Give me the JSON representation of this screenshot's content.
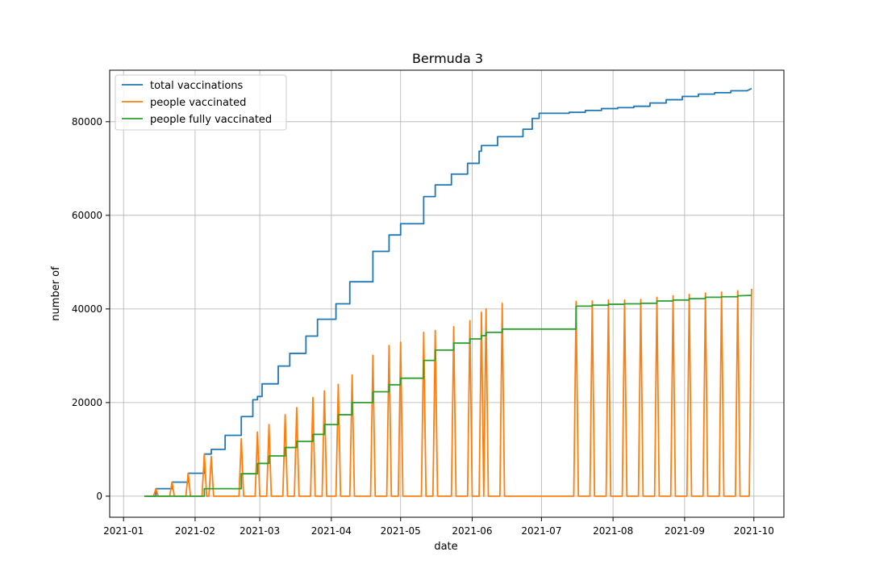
{
  "chart_data": {
    "type": "line",
    "title": "Bermuda 3",
    "xlabel": "date",
    "ylabel": "number of",
    "xlim": [
      "2020-12-26",
      "2021-10-14"
    ],
    "ylim": [
      -4500,
      91000
    ],
    "x_ticks": [
      "2021-01",
      "2021-02",
      "2021-03",
      "2021-04",
      "2021-05",
      "2021-06",
      "2021-07",
      "2021-08",
      "2021-09",
      "2021-10"
    ],
    "y_ticks": [
      0,
      20000,
      40000,
      60000,
      80000
    ],
    "y_tick_labels": [
      "0",
      "20000",
      "40000",
      "60000",
      "80000"
    ],
    "grid": true,
    "legend_position": "top-left",
    "series": [
      {
        "name": "total vaccinations",
        "color": "#1f77b4",
        "points": [
          [
            "2021-01-10",
            0
          ],
          [
            "2021-01-15",
            0
          ],
          [
            "2021-01-15",
            1600
          ],
          [
            "2021-01-22",
            1600
          ],
          [
            "2021-01-22",
            3000
          ],
          [
            "2021-01-29",
            3000
          ],
          [
            "2021-01-29",
            4900
          ],
          [
            "2021-02-05",
            4900
          ],
          [
            "2021-02-05",
            9000
          ],
          [
            "2021-02-08",
            9000
          ],
          [
            "2021-02-08",
            10000
          ],
          [
            "2021-02-14",
            10000
          ],
          [
            "2021-02-14",
            13000
          ],
          [
            "2021-02-21",
            13000
          ],
          [
            "2021-02-21",
            17000
          ],
          [
            "2021-02-26",
            17000
          ],
          [
            "2021-02-26",
            20600
          ],
          [
            "2021-02-28",
            20600
          ],
          [
            "2021-02-28",
            21300
          ],
          [
            "2021-03-02",
            21300
          ],
          [
            "2021-03-02",
            24000
          ],
          [
            "2021-03-09",
            24000
          ],
          [
            "2021-03-09",
            27800
          ],
          [
            "2021-03-14",
            27800
          ],
          [
            "2021-03-14",
            30500
          ],
          [
            "2021-03-21",
            30500
          ],
          [
            "2021-03-21",
            34200
          ],
          [
            "2021-03-26",
            34200
          ],
          [
            "2021-03-26",
            37800
          ],
          [
            "2021-04-03",
            37800
          ],
          [
            "2021-04-03",
            41100
          ],
          [
            "2021-04-09",
            41100
          ],
          [
            "2021-04-09",
            45800
          ],
          [
            "2021-04-19",
            45800
          ],
          [
            "2021-04-19",
            52300
          ],
          [
            "2021-04-26",
            52300
          ],
          [
            "2021-04-26",
            55800
          ],
          [
            "2021-05-01",
            55800
          ],
          [
            "2021-05-01",
            58200
          ],
          [
            "2021-05-11",
            58200
          ],
          [
            "2021-05-11",
            64000
          ],
          [
            "2021-05-16",
            64000
          ],
          [
            "2021-05-16",
            66500
          ],
          [
            "2021-05-23",
            66500
          ],
          [
            "2021-05-23",
            68800
          ],
          [
            "2021-05-30",
            68800
          ],
          [
            "2021-05-30",
            71100
          ],
          [
            "2021-06-04",
            71100
          ],
          [
            "2021-06-04",
            73700
          ],
          [
            "2021-06-05",
            73700
          ],
          [
            "2021-06-05",
            74900
          ],
          [
            "2021-06-12",
            74900
          ],
          [
            "2021-06-12",
            76800
          ],
          [
            "2021-06-23",
            76800
          ],
          [
            "2021-06-23",
            78400
          ],
          [
            "2021-06-27",
            78400
          ],
          [
            "2021-06-27",
            80700
          ],
          [
            "2021-06-30",
            80700
          ],
          [
            "2021-06-30",
            81800
          ],
          [
            "2021-07-13",
            81800
          ],
          [
            "2021-07-13",
            82000
          ],
          [
            "2021-07-20",
            82000
          ],
          [
            "2021-07-20",
            82400
          ],
          [
            "2021-07-27",
            82400
          ],
          [
            "2021-07-27",
            82800
          ],
          [
            "2021-08-03",
            82800
          ],
          [
            "2021-08-03",
            83000
          ],
          [
            "2021-08-10",
            83000
          ],
          [
            "2021-08-10",
            83300
          ],
          [
            "2021-08-17",
            83300
          ],
          [
            "2021-08-17",
            84000
          ],
          [
            "2021-08-24",
            84000
          ],
          [
            "2021-08-24",
            84700
          ],
          [
            "2021-08-31",
            84700
          ],
          [
            "2021-08-31",
            85400
          ],
          [
            "2021-09-07",
            85400
          ],
          [
            "2021-09-07",
            85900
          ],
          [
            "2021-09-14",
            85900
          ],
          [
            "2021-09-14",
            86200
          ],
          [
            "2021-09-21",
            86200
          ],
          [
            "2021-09-21",
            86600
          ],
          [
            "2021-09-28",
            86600
          ],
          [
            "2021-09-30",
            87100
          ]
        ]
      },
      {
        "name": "people vaccinated",
        "color": "#ff7f0e",
        "points": [
          [
            "2021-01-10",
            0
          ],
          [
            "2021-01-14",
            0
          ],
          [
            "2021-01-15",
            1600
          ],
          [
            "2021-01-16",
            0
          ],
          [
            "2021-01-21",
            0
          ],
          [
            "2021-01-22",
            3000
          ],
          [
            "2021-01-23",
            0
          ],
          [
            "2021-01-28",
            0
          ],
          [
            "2021-01-29",
            4900
          ],
          [
            "2021-01-30",
            0
          ],
          [
            "2021-02-04",
            0
          ],
          [
            "2021-02-05",
            9000
          ],
          [
            "2021-02-06",
            0
          ],
          [
            "2021-02-07",
            0
          ],
          [
            "2021-02-08",
            8500
          ],
          [
            "2021-02-09",
            0
          ],
          [
            "2021-02-20",
            0
          ],
          [
            "2021-02-21",
            12300
          ],
          [
            "2021-02-22",
            0
          ],
          [
            "2021-02-27",
            0
          ],
          [
            "2021-02-28",
            13700
          ],
          [
            "2021-03-01",
            0
          ],
          [
            "2021-03-04",
            0
          ],
          [
            "2021-03-05",
            15300
          ],
          [
            "2021-03-06",
            0
          ],
          [
            "2021-03-11",
            0
          ],
          [
            "2021-03-12",
            17400
          ],
          [
            "2021-03-13",
            0
          ],
          [
            "2021-03-16",
            0
          ],
          [
            "2021-03-17",
            18900
          ],
          [
            "2021-03-18",
            0
          ],
          [
            "2021-03-23",
            0
          ],
          [
            "2021-03-24",
            21100
          ],
          [
            "2021-03-25",
            0
          ],
          [
            "2021-03-28",
            0
          ],
          [
            "2021-03-29",
            22500
          ],
          [
            "2021-03-30",
            0
          ],
          [
            "2021-04-03",
            0
          ],
          [
            "2021-04-04",
            23900
          ],
          [
            "2021-04-05",
            0
          ],
          [
            "2021-04-09",
            0
          ],
          [
            "2021-04-10",
            25900
          ],
          [
            "2021-04-11",
            0
          ],
          [
            "2021-04-18",
            0
          ],
          [
            "2021-04-19",
            30100
          ],
          [
            "2021-04-20",
            0
          ],
          [
            "2021-04-25",
            0
          ],
          [
            "2021-04-26",
            32200
          ],
          [
            "2021-04-27",
            0
          ],
          [
            "2021-04-30",
            0
          ],
          [
            "2021-05-01",
            32900
          ],
          [
            "2021-05-02",
            0
          ],
          [
            "2021-05-10",
            0
          ],
          [
            "2021-05-11",
            35000
          ],
          [
            "2021-05-12",
            0
          ],
          [
            "2021-05-15",
            0
          ],
          [
            "2021-05-16",
            35400
          ],
          [
            "2021-05-17",
            0
          ],
          [
            "2021-05-23",
            0
          ],
          [
            "2021-05-24",
            36200
          ],
          [
            "2021-05-25",
            0
          ],
          [
            "2021-05-30",
            0
          ],
          [
            "2021-05-31",
            37500
          ],
          [
            "2021-06-01",
            0
          ],
          [
            "2021-06-04",
            0
          ],
          [
            "2021-06-05",
            39300
          ],
          [
            "2021-06-06",
            0
          ],
          [
            "2021-06-06",
            0
          ],
          [
            "2021-06-07",
            40000
          ],
          [
            "2021-06-08",
            0
          ],
          [
            "2021-06-13",
            0
          ],
          [
            "2021-06-14",
            41200
          ],
          [
            "2021-06-15",
            0
          ],
          [
            "2021-07-15",
            0
          ],
          [
            "2021-07-16",
            41600
          ],
          [
            "2021-07-17",
            0
          ],
          [
            "2021-07-22",
            0
          ],
          [
            "2021-07-23",
            41700
          ],
          [
            "2021-07-24",
            0
          ],
          [
            "2021-07-29",
            0
          ],
          [
            "2021-07-30",
            41900
          ],
          [
            "2021-07-31",
            0
          ],
          [
            "2021-08-05",
            0
          ],
          [
            "2021-08-06",
            41900
          ],
          [
            "2021-08-07",
            0
          ],
          [
            "2021-08-12",
            0
          ],
          [
            "2021-08-13",
            42000
          ],
          [
            "2021-08-14",
            0
          ],
          [
            "2021-08-19",
            0
          ],
          [
            "2021-08-20",
            42500
          ],
          [
            "2021-08-21",
            0
          ],
          [
            "2021-08-26",
            0
          ],
          [
            "2021-08-27",
            42800
          ],
          [
            "2021-08-28",
            0
          ],
          [
            "2021-09-02",
            0
          ],
          [
            "2021-09-03",
            43100
          ],
          [
            "2021-09-04",
            0
          ],
          [
            "2021-09-09",
            0
          ],
          [
            "2021-09-10",
            43400
          ],
          [
            "2021-09-11",
            0
          ],
          [
            "2021-09-16",
            0
          ],
          [
            "2021-09-17",
            43600
          ],
          [
            "2021-09-18",
            0
          ],
          [
            "2021-09-23",
            0
          ],
          [
            "2021-09-24",
            43900
          ],
          [
            "2021-09-25",
            0
          ],
          [
            "2021-09-29",
            0
          ],
          [
            "2021-09-30",
            44300
          ]
        ]
      },
      {
        "name": "people fully vaccinated",
        "color": "#2ca02c",
        "points": [
          [
            "2021-01-10",
            0
          ],
          [
            "2021-02-05",
            0
          ],
          [
            "2021-02-05",
            1600
          ],
          [
            "2021-02-21",
            1600
          ],
          [
            "2021-02-21",
            4800
          ],
          [
            "2021-02-28",
            4800
          ],
          [
            "2021-02-28",
            7000
          ],
          [
            "2021-03-05",
            7000
          ],
          [
            "2021-03-05",
            8600
          ],
          [
            "2021-03-12",
            8600
          ],
          [
            "2021-03-12",
            10400
          ],
          [
            "2021-03-17",
            10400
          ],
          [
            "2021-03-17",
            11700
          ],
          [
            "2021-03-24",
            11700
          ],
          [
            "2021-03-24",
            13200
          ],
          [
            "2021-03-29",
            13200
          ],
          [
            "2021-03-29",
            15300
          ],
          [
            "2021-04-04",
            15300
          ],
          [
            "2021-04-04",
            17400
          ],
          [
            "2021-04-10",
            17400
          ],
          [
            "2021-04-10",
            20000
          ],
          [
            "2021-04-19",
            20000
          ],
          [
            "2021-04-19",
            22300
          ],
          [
            "2021-04-26",
            22300
          ],
          [
            "2021-04-26",
            23800
          ],
          [
            "2021-05-01",
            23800
          ],
          [
            "2021-05-01",
            25200
          ],
          [
            "2021-05-11",
            25200
          ],
          [
            "2021-05-11",
            29000
          ],
          [
            "2021-05-16",
            29000
          ],
          [
            "2021-05-16",
            31200
          ],
          [
            "2021-05-24",
            31200
          ],
          [
            "2021-05-24",
            32700
          ],
          [
            "2021-05-31",
            32700
          ],
          [
            "2021-05-31",
            33600
          ],
          [
            "2021-06-05",
            33600
          ],
          [
            "2021-06-05",
            34300
          ],
          [
            "2021-06-07",
            34300
          ],
          [
            "2021-06-07",
            35000
          ],
          [
            "2021-06-14",
            35000
          ],
          [
            "2021-06-14",
            35700
          ],
          [
            "2021-07-16",
            35700
          ],
          [
            "2021-07-16",
            40600
          ],
          [
            "2021-07-23",
            40600
          ],
          [
            "2021-07-23",
            40800
          ],
          [
            "2021-07-30",
            40800
          ],
          [
            "2021-07-30",
            41000
          ],
          [
            "2021-08-06",
            41000
          ],
          [
            "2021-08-06",
            41100
          ],
          [
            "2021-08-13",
            41100
          ],
          [
            "2021-08-13",
            41200
          ],
          [
            "2021-08-20",
            41200
          ],
          [
            "2021-08-20",
            41700
          ],
          [
            "2021-08-27",
            41700
          ],
          [
            "2021-08-27",
            41900
          ],
          [
            "2021-09-03",
            41900
          ],
          [
            "2021-09-03",
            42200
          ],
          [
            "2021-09-10",
            42200
          ],
          [
            "2021-09-10",
            42500
          ],
          [
            "2021-09-17",
            42500
          ],
          [
            "2021-09-17",
            42600
          ],
          [
            "2021-09-24",
            42600
          ],
          [
            "2021-09-24",
            42800
          ],
          [
            "2021-09-30",
            42900
          ]
        ]
      }
    ]
  }
}
